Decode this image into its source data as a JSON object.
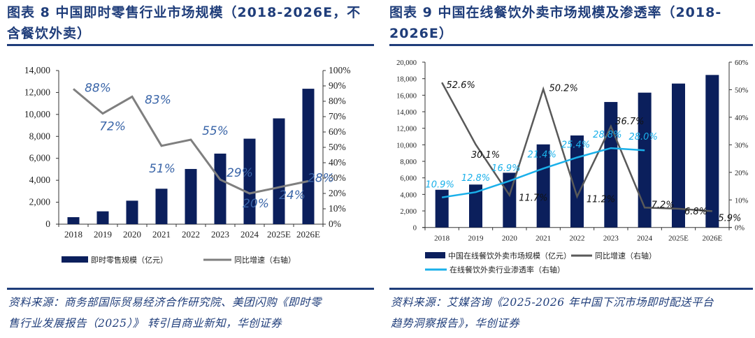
{
  "colors": {
    "title": "#1f3d7a",
    "bar": "#0b1f5c",
    "growth_line_1": "#7f7f7f",
    "growth_label_1": "#3a65a8",
    "growth_line_2": "#595959",
    "penetration_line": "#1ab0ea",
    "axis": "#333333"
  },
  "left": {
    "title_line1": "图表 8   中国即时零售行业市场规模（2018-2026E，不",
    "title_line2": "含餐饮外卖）",
    "source_line1": "资料来源：商务部国际贸易经济合作研究院、美团闪购《即时零",
    "source_line2": "售行业发展报告（2025）》 转引自商业新知，华创证券"
  },
  "right": {
    "title_line1": "图表 9   中国在线餐饮外卖市场规模及渗透率（2018-",
    "title_line2": "2026E）",
    "source_line1": "资料来源：艾媒咨询《2025-2026 年中国下沉市场即时配送平台",
    "source_line2": "趋势洞察报告》，华创证券"
  },
  "chart_data": [
    {
      "type": "bar",
      "title": "中国即时零售行业市场规模（2018-2026E，不含餐饮外卖）",
      "categories": [
        "2018",
        "2019",
        "2020",
        "2021",
        "2022",
        "2023",
        "2024",
        "2025E",
        "2026E"
      ],
      "left_axis": {
        "ylim": [
          0,
          14000
        ],
        "ticks": [
          "0",
          "2,000",
          "4,000",
          "6,000",
          "8,000",
          "10,000",
          "12,000",
          "14,000"
        ]
      },
      "right_axis": {
        "ylim": [
          0,
          100
        ],
        "ticks": [
          "0%",
          "10%",
          "20%",
          "30%",
          "40%",
          "50%",
          "60%",
          "70%",
          "80%",
          "90%",
          "100%"
        ]
      },
      "series": [
        {
          "name": "即时零售规模（亿元）",
          "kind": "bar",
          "axis": "left",
          "values": [
            640,
            1170,
            2140,
            3230,
            5030,
            6430,
            7790,
            9640,
            12340
          ]
        },
        {
          "name": "同比增速（右轴）",
          "kind": "line",
          "axis": "right",
          "values": [
            88,
            72,
            83,
            51,
            55,
            29,
            20,
            24,
            28
          ],
          "labels": [
            "88%",
            "72%",
            "83%",
            "51%",
            "55%",
            "29%",
            "20%",
            "24%",
            "28%"
          ]
        }
      ],
      "legend": [
        "即时零售规模（亿元）",
        "同比增速（右轴）"
      ],
      "legend_position": "bottom"
    },
    {
      "type": "bar",
      "title": "中国在线餐饮外卖市场规模及渗透率（2018-2026E）",
      "categories": [
        "2018",
        "2019",
        "2020",
        "2021",
        "2022",
        "2023",
        "2024",
        "2025E",
        "2026E"
      ],
      "left_axis": {
        "ylim": [
          0,
          20000
        ],
        "ticks": [
          "0",
          "2,000",
          "4,000",
          "6,000",
          "8,000",
          "10,000",
          "12,000",
          "14,000",
          "16,000",
          "18,000",
          "20,000"
        ]
      },
      "right_axis": {
        "ylim": [
          0,
          60
        ],
        "ticks": [
          "0%",
          "10%",
          "20%",
          "30%",
          "40%",
          "50%",
          "60%"
        ]
      },
      "series": [
        {
          "name": "中国在线餐饮外卖市场规模（亿元）",
          "kind": "bar",
          "axis": "left",
          "values": [
            4560,
            5190,
            6620,
            10050,
            11130,
            15180,
            16310,
            17410,
            18450
          ]
        },
        {
          "name": "同比增速（右轴）",
          "kind": "line",
          "axis": "right",
          "values": [
            52.6,
            30.1,
            11.7,
            50.2,
            11.2,
            36.7,
            7.2,
            6.8,
            5.9
          ],
          "labels": [
            "52.6%",
            "30.1%",
            "11.7%",
            "50.2%",
            "11.2%",
            "36.7%",
            "7.2%",
            "6.8%",
            "5.9%"
          ]
        },
        {
          "name": "在线餐饮外卖行业渗透率（右轴）",
          "kind": "line",
          "axis": "right",
          "values": [
            10.9,
            12.8,
            16.9,
            21.4,
            25.4,
            28.8,
            28.0,
            null,
            null
          ],
          "labels": [
            "10.9%",
            "12.8%",
            "16.9%",
            "21.4%",
            "25.4%",
            "28.8%",
            "28.0%",
            null,
            null
          ]
        }
      ],
      "legend": [
        "中国在线餐饮外卖市场规模（亿元）",
        "同比增速（右轴）",
        "在线餐饮外卖行业渗透率（右轴）"
      ],
      "legend_position": "bottom"
    }
  ]
}
